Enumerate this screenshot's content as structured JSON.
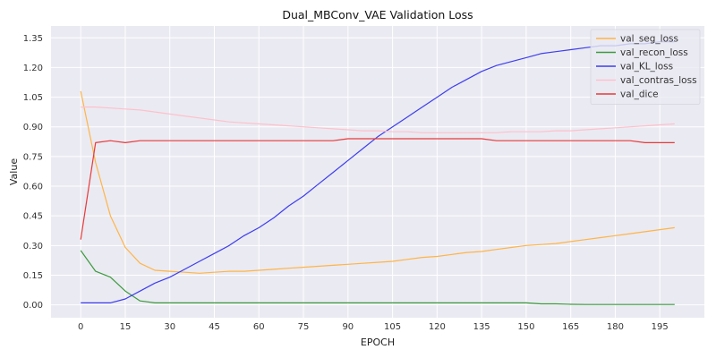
{
  "chart_data": {
    "type": "line",
    "title": "Dual_MBConv_VAE Validation Loss",
    "xlabel": "EPOCH",
    "ylabel": "Value",
    "xlim": [
      -10,
      210
    ],
    "ylim": [
      -0.065,
      1.41
    ],
    "x_ticks": [
      0,
      15,
      30,
      45,
      60,
      75,
      90,
      105,
      120,
      135,
      150,
      165,
      180,
      195
    ],
    "y_ticks": [
      0.0,
      0.15,
      0.3,
      0.45,
      0.6,
      0.75,
      0.9,
      1.05,
      1.2,
      1.35
    ],
    "y_tick_labels": [
      "0.00",
      "0.15",
      "0.30",
      "0.45",
      "0.60",
      "0.75",
      "0.90",
      "1.05",
      "1.20",
      "1.35"
    ],
    "grid": true,
    "legend_position": "top-right",
    "x": [
      0,
      5,
      10,
      15,
      20,
      25,
      30,
      35,
      40,
      45,
      50,
      55,
      60,
      65,
      70,
      75,
      80,
      85,
      90,
      95,
      100,
      105,
      110,
      115,
      120,
      125,
      130,
      135,
      140,
      145,
      150,
      155,
      160,
      165,
      170,
      175,
      180,
      185,
      190,
      195,
      200
    ],
    "series": [
      {
        "name": "val_seg_loss",
        "color": "#ffb447",
        "values": [
          1.08,
          0.72,
          0.45,
          0.29,
          0.21,
          0.175,
          0.17,
          0.165,
          0.16,
          0.165,
          0.17,
          0.17,
          0.175,
          0.18,
          0.185,
          0.19,
          0.195,
          0.2,
          0.205,
          0.21,
          0.215,
          0.22,
          0.23,
          0.24,
          0.245,
          0.255,
          0.265,
          0.27,
          0.28,
          0.29,
          0.3,
          0.305,
          0.31,
          0.32,
          0.33,
          0.34,
          0.35,
          0.36,
          0.37,
          0.38,
          0.39
        ]
      },
      {
        "name": "val_recon_loss",
        "color": "#3c9a3c",
        "values": [
          0.275,
          0.17,
          0.14,
          0.07,
          0.02,
          0.01,
          0.01,
          0.01,
          0.01,
          0.01,
          0.01,
          0.01,
          0.01,
          0.01,
          0.01,
          0.01,
          0.01,
          0.01,
          0.01,
          0.01,
          0.01,
          0.01,
          0.01,
          0.01,
          0.01,
          0.01,
          0.01,
          0.01,
          0.01,
          0.01,
          0.01,
          0.005,
          0.005,
          0.003,
          0.002,
          0.002,
          0.002,
          0.002,
          0.002,
          0.002,
          0.002
        ]
      },
      {
        "name": "val_KL_loss",
        "color": "#3d3df0",
        "values": [
          0.01,
          0.01,
          0.01,
          0.03,
          0.07,
          0.11,
          0.14,
          0.18,
          0.22,
          0.26,
          0.3,
          0.35,
          0.39,
          0.44,
          0.5,
          0.55,
          0.61,
          0.67,
          0.73,
          0.79,
          0.85,
          0.9,
          0.95,
          1.0,
          1.05,
          1.1,
          1.14,
          1.18,
          1.21,
          1.23,
          1.25,
          1.27,
          1.28,
          1.29,
          1.3,
          1.31,
          1.31,
          1.32,
          1.32,
          1.33,
          1.33
        ]
      },
      {
        "name": "val_contras_loss",
        "color": "#ffc0cb",
        "values": [
          1.0,
          1.0,
          0.995,
          0.99,
          0.985,
          0.975,
          0.965,
          0.955,
          0.945,
          0.935,
          0.925,
          0.92,
          0.915,
          0.91,
          0.905,
          0.9,
          0.895,
          0.89,
          0.885,
          0.88,
          0.88,
          0.875,
          0.875,
          0.87,
          0.87,
          0.87,
          0.87,
          0.87,
          0.87,
          0.875,
          0.875,
          0.875,
          0.88,
          0.88,
          0.885,
          0.89,
          0.895,
          0.9,
          0.905,
          0.91,
          0.915
        ]
      },
      {
        "name": "val_dice",
        "color": "#e83a3a",
        "values": [
          0.33,
          0.82,
          0.83,
          0.82,
          0.83,
          0.83,
          0.83,
          0.83,
          0.83,
          0.83,
          0.83,
          0.83,
          0.83,
          0.83,
          0.83,
          0.83,
          0.83,
          0.83,
          0.84,
          0.84,
          0.84,
          0.84,
          0.84,
          0.84,
          0.84,
          0.84,
          0.84,
          0.84,
          0.83,
          0.83,
          0.83,
          0.83,
          0.83,
          0.83,
          0.83,
          0.83,
          0.83,
          0.83,
          0.82,
          0.82,
          0.82
        ]
      }
    ]
  }
}
